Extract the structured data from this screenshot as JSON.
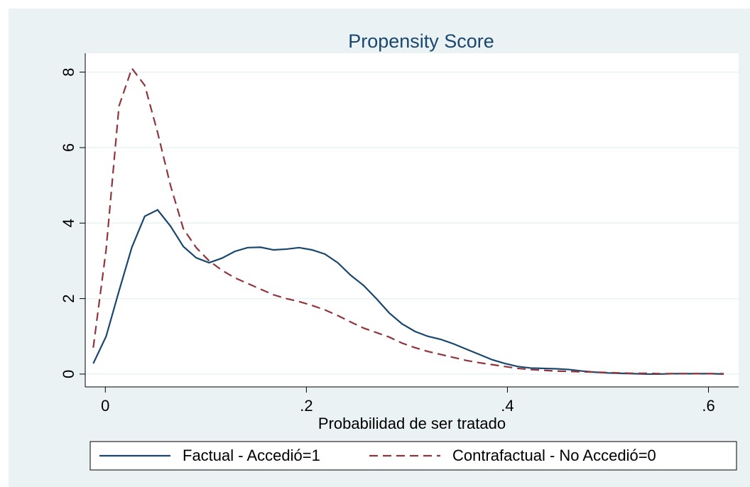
{
  "chart_data": {
    "type": "line",
    "title": "Propensity Score",
    "x_label": "Probabilidad de ser tratado",
    "x": [
      -0.012,
      0.0008,
      0.0136,
      0.0264,
      0.0392,
      0.052,
      0.0648,
      0.0776,
      0.0904,
      0.1032,
      0.116,
      0.1288,
      0.1416,
      0.1544,
      0.1672,
      0.18,
      0.1928,
      0.2056,
      0.2184,
      0.2312,
      0.244,
      0.2568,
      0.2696,
      0.2824,
      0.2952,
      0.308,
      0.3208,
      0.3336,
      0.3464,
      0.3592,
      0.372,
      0.3848,
      0.3976,
      0.4104,
      0.4232,
      0.436,
      0.4488,
      0.4616,
      0.4744,
      0.4872,
      0.5,
      0.5128,
      0.5256,
      0.5384,
      0.5512,
      0.564,
      0.5768,
      0.5896,
      0.6024,
      0.6152
    ],
    "series": [
      {
        "name": "Factual - Accedió=1",
        "color": "#1a476f",
        "dash": false,
        "values": [
          0.28,
          1.0,
          2.2,
          3.36,
          4.18,
          4.35,
          3.92,
          3.38,
          3.08,
          2.95,
          3.07,
          3.25,
          3.35,
          3.36,
          3.29,
          3.31,
          3.35,
          3.29,
          3.18,
          2.95,
          2.62,
          2.35,
          2.0,
          1.62,
          1.33,
          1.13,
          1.0,
          0.92,
          0.8,
          0.66,
          0.52,
          0.38,
          0.28,
          0.2,
          0.16,
          0.15,
          0.14,
          0.12,
          0.08,
          0.05,
          0.03,
          0.02,
          0.01,
          0.0,
          0.0,
          0.01,
          0.01,
          0.01,
          0.01,
          0.0
        ]
      },
      {
        "name": "Contrafactual - No Accedió=0",
        "color": "#90353b",
        "dash": true,
        "values": [
          0.7,
          3.3,
          7.1,
          8.1,
          7.65,
          6.4,
          5.0,
          3.85,
          3.35,
          3.0,
          2.75,
          2.55,
          2.4,
          2.25,
          2.1,
          2.0,
          1.92,
          1.82,
          1.7,
          1.55,
          1.38,
          1.22,
          1.1,
          0.98,
          0.82,
          0.7,
          0.6,
          0.52,
          0.44,
          0.36,
          0.3,
          0.25,
          0.2,
          0.15,
          0.12,
          0.1,
          0.08,
          0.07,
          0.06,
          0.05,
          0.04,
          0.03,
          0.02,
          0.02,
          0.01,
          0.01,
          0.01,
          0.01,
          0.01,
          0.01
        ]
      }
    ],
    "xlim": [
      -0.02,
      0.63
    ],
    "xticks": [
      0,
      {
        "value": 0.2,
        "label": ".2"
      },
      {
        "value": 0.4,
        "label": ".4"
      },
      {
        "value": 0.6,
        "label": ".6"
      }
    ],
    "ylim": [
      -0.34,
      8.5
    ],
    "yticks": [
      0,
      2,
      4,
      6,
      8
    ],
    "grid": true,
    "legend": "bottom"
  }
}
